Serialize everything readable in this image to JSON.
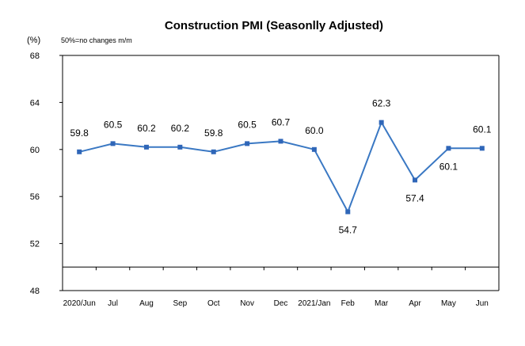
{
  "chart_data": {
    "type": "line",
    "title": "Construction PMI (Seasonlly Adjusted)",
    "unit_label": "(%)",
    "note": "50%=no changes  m/m",
    "categories": [
      "2020/Jun",
      "Jul",
      "Aug",
      "Sep",
      "Oct",
      "Nov",
      "Dec",
      "2021/Jan",
      "Feb",
      "Mar",
      "Apr",
      "May",
      "Jun"
    ],
    "values": [
      59.8,
      60.5,
      60.2,
      60.2,
      59.8,
      60.5,
      60.7,
      60.0,
      54.7,
      62.3,
      57.4,
      60.1,
      60.1
    ],
    "data_labels": [
      "59.8",
      "60.5",
      "60.2",
      "60.2",
      "59.8",
      "60.5",
      "60.7",
      "60.0",
      "54.7",
      "62.3",
      "57.4",
      "60.1",
      "60.1"
    ],
    "label_position": [
      "above",
      "above",
      "above",
      "above",
      "above",
      "above",
      "above",
      "above",
      "below",
      "above",
      "below",
      "below",
      "above"
    ],
    "ylim": [
      48,
      68
    ],
    "yticks": [
      "48",
      "52",
      "56",
      "60",
      "64",
      "68"
    ],
    "xlabel": "",
    "ylabel": "",
    "grid": false,
    "line_color": "#3a78c3",
    "marker_color": "#2f66b8",
    "axis_color": "#000000"
  }
}
